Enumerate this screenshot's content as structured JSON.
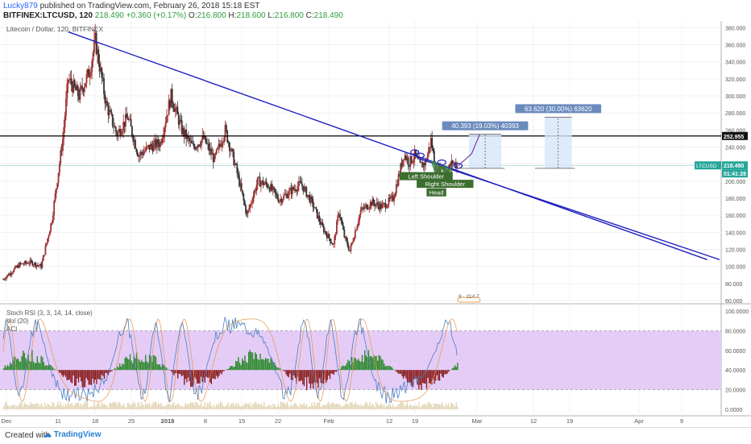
{
  "header": {
    "author": "Lucky879",
    "published": "published on TradingView.com, February 26, 2018 15:18 EST",
    "symbol": "BITFINEX:LTCUSD, 120",
    "last": "218.490",
    "change": "+0.360 (+0.17%)",
    "open": "216.800",
    "high": "218.600",
    "low": "216.800",
    "close": "218.490"
  },
  "footer": {
    "created_with": "Created with",
    "brand": "TradingView"
  },
  "colors": {
    "trendline": "#1f1fbf",
    "candle_up": "#a03030",
    "candle_down": "#333333",
    "horizontal_line": "#000000",
    "price_tag": "#26a69a",
    "projection_box": "#d6e6fa",
    "label_box": "#6b8bbd",
    "pattern_fill": "#3e8e3e",
    "rsi_band": "#e4ccf7",
    "rsi_k": "#4a7fc1",
    "rsi_d": "#e8944a",
    "histogram_pos": "#2e8b2e",
    "histogram_neg": "#8b2020"
  },
  "chart_data": {
    "type": "candlestick",
    "title": "Litecoin / Dollar, 120, BITFINEX",
    "ylim": [
      60,
      385
    ],
    "y_ticks": [
      "380.000",
      "360.000",
      "340.000",
      "320.000",
      "300.000",
      "280.000",
      "260.000",
      "240.000",
      "220.000",
      "200.000",
      "180.000",
      "160.000",
      "140.000",
      "120.000",
      "100.000",
      "80.000",
      "60.000"
    ],
    "y_tick_values": [
      380,
      360,
      340,
      320,
      300,
      280,
      260,
      240,
      220,
      200,
      180,
      160,
      140,
      120,
      100,
      80,
      60
    ],
    "x_ticks": [
      "Dec",
      "11",
      "18",
      "25",
      "2018",
      "8",
      "15",
      "22",
      "Feb",
      "12",
      "19",
      "Mar",
      "12",
      "19",
      "Apr",
      "9"
    ],
    "price_path": [
      {
        "t": 0,
        "p": 85
      },
      {
        "t": 3,
        "p": 102
      },
      {
        "t": 5,
        "p": 105
      },
      {
        "t": 7,
        "p": 100
      },
      {
        "t": 9,
        "p": 155
      },
      {
        "t": 11,
        "p": 250
      },
      {
        "t": 12,
        "p": 320
      },
      {
        "t": 14,
        "p": 300
      },
      {
        "t": 16,
        "p": 330
      },
      {
        "t": 17,
        "p": 365
      },
      {
        "t": 19,
        "p": 290
      },
      {
        "t": 21,
        "p": 255
      },
      {
        "t": 23,
        "p": 275
      },
      {
        "t": 25,
        "p": 230
      },
      {
        "t": 27,
        "p": 240
      },
      {
        "t": 29,
        "p": 245
      },
      {
        "t": 31,
        "p": 300
      },
      {
        "t": 33,
        "p": 260
      },
      {
        "t": 35,
        "p": 240
      },
      {
        "t": 37,
        "p": 250
      },
      {
        "t": 39,
        "p": 225
      },
      {
        "t": 41,
        "p": 260
      },
      {
        "t": 43,
        "p": 215
      },
      {
        "t": 45,
        "p": 160
      },
      {
        "t": 47,
        "p": 200
      },
      {
        "t": 49,
        "p": 195
      },
      {
        "t": 51,
        "p": 178
      },
      {
        "t": 53,
        "p": 188
      },
      {
        "t": 55,
        "p": 197
      },
      {
        "t": 57,
        "p": 175
      },
      {
        "t": 59,
        "p": 145
      },
      {
        "t": 61,
        "p": 125
      },
      {
        "t": 62,
        "p": 165
      },
      {
        "t": 63,
        "p": 135
      },
      {
        "t": 64,
        "p": 118
      },
      {
        "t": 66,
        "p": 165
      },
      {
        "t": 68,
        "p": 175
      },
      {
        "t": 70,
        "p": 170
      },
      {
        "t": 72,
        "p": 180
      },
      {
        "t": 73,
        "p": 205
      },
      {
        "t": 74,
        "p": 232
      },
      {
        "t": 75,
        "p": 222
      },
      {
        "t": 76,
        "p": 230
      },
      {
        "t": 77,
        "p": 218
      },
      {
        "t": 78,
        "p": 222
      },
      {
        "t": 79,
        "p": 248
      },
      {
        "t": 80,
        "p": 210
      },
      {
        "t": 81,
        "p": 218
      },
      {
        "t": 82,
        "p": 212
      },
      {
        "t": 83,
        "p": 222
      },
      {
        "t": 84,
        "p": 218
      }
    ],
    "last_price": 218.49,
    "last_price_label": "LTCUSD · 218.490",
    "countdown_label": "01:41:28",
    "resistance_level": 252.955,
    "resistance_label": "252.955",
    "trendline": {
      "from": {
        "t": 12,
        "p": 375
      },
      "to": {
        "t": 130,
        "p": 108
      }
    },
    "projections": [
      {
        "label": "40.393 (19.03%) 40393",
        "from_t": 86,
        "to_t": 92,
        "p_low": 215,
        "p_high": 255
      },
      {
        "label": "63.620 (30.00%) 63620",
        "from_t": 100,
        "to_t": 105,
        "p_low": 215,
        "p_high": 275
      }
    ],
    "pattern_labels": [
      "Left Shoulder",
      "Right Shoulder",
      "Head"
    ],
    "event_marker": "9 · 214.7",
    "indicator": {
      "labels": [
        "Stoch RSI (3, 3, 14, 14, close)",
        "Vol (20)",
        "ACI"
      ],
      "ylim": [
        -5,
        105
      ],
      "y_ticks": [
        "100.0000",
        "80.0000",
        "60.0000",
        "40.0000",
        "20.0000",
        "0.0000"
      ],
      "y_tick_values": [
        100,
        80,
        60,
        40,
        20,
        0
      ],
      "band": [
        20,
        80
      ]
    }
  }
}
